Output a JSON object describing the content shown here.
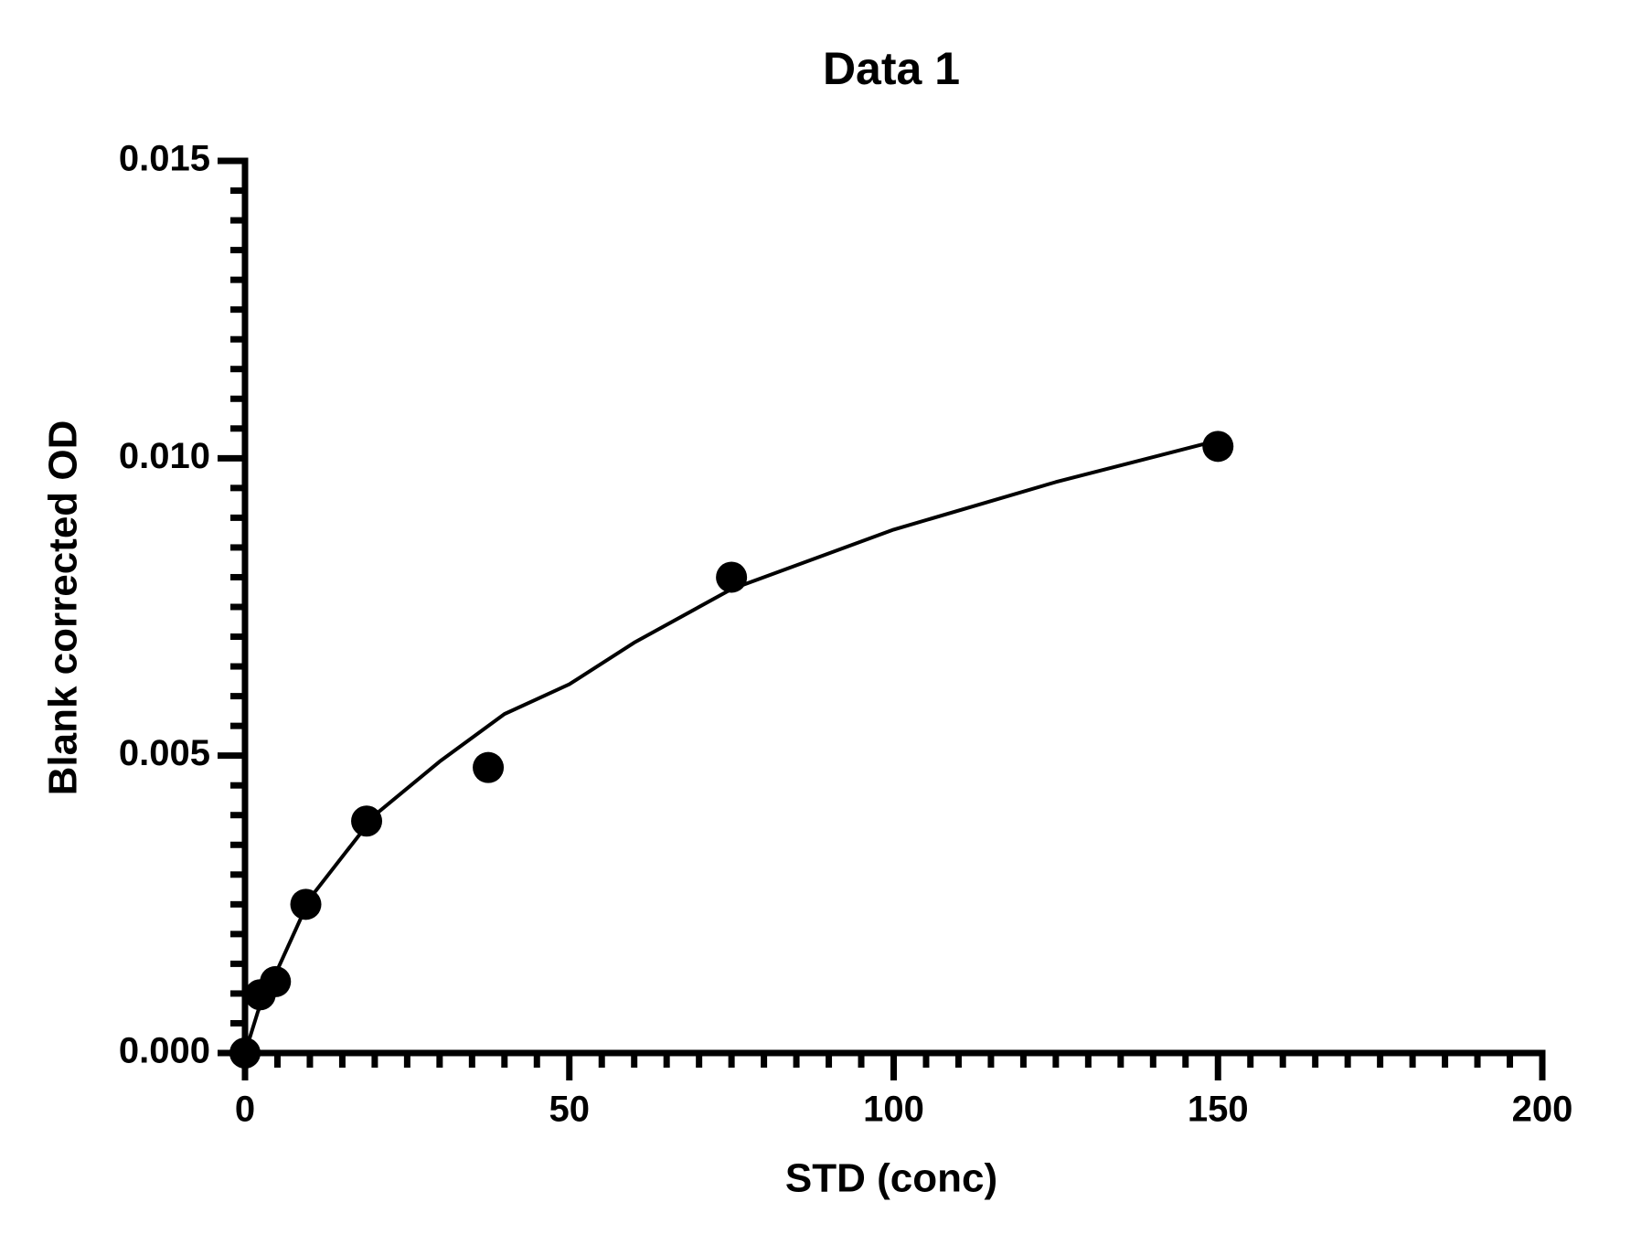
{
  "chart_data": {
    "type": "scatter",
    "title": "Data 1",
    "x_label": "STD (conc)",
    "y_label": "Blank corrected OD",
    "xlim": [
      0,
      200
    ],
    "ylim": [
      0,
      0.015
    ],
    "xticks": [
      0,
      50,
      100,
      150,
      200
    ],
    "yticks": [
      {
        "value": 0,
        "label": "0.000"
      },
      {
        "value": 0.005,
        "label": "0.005"
      },
      {
        "value": 0.01,
        "label": "0.010"
      },
      {
        "value": 0.015,
        "label": "0.015"
      }
    ],
    "minor_ticks": 10,
    "grid": false,
    "color": "#000000",
    "series": [
      {
        "type": "scatter",
        "color": "#000000",
        "x": [
          0,
          2.34,
          4.69,
          9.375,
          18.75,
          37.5,
          75,
          150
        ],
        "values": [
          0,
          0.00098,
          0.0012,
          0.0025,
          0.0039,
          0.0048,
          0.008,
          0.0102
        ]
      },
      {
        "type": "line",
        "color": "#000000",
        "x": [
          0,
          2,
          5,
          10,
          20,
          30,
          40,
          50,
          60,
          75,
          100,
          125,
          150
        ],
        "values": [
          0,
          0.0007,
          0.0014,
          0.0026,
          0.004,
          0.0049,
          0.0057,
          0.0062,
          0.0069,
          0.0078,
          0.0088,
          0.0096,
          0.0103
        ]
      }
    ]
  }
}
